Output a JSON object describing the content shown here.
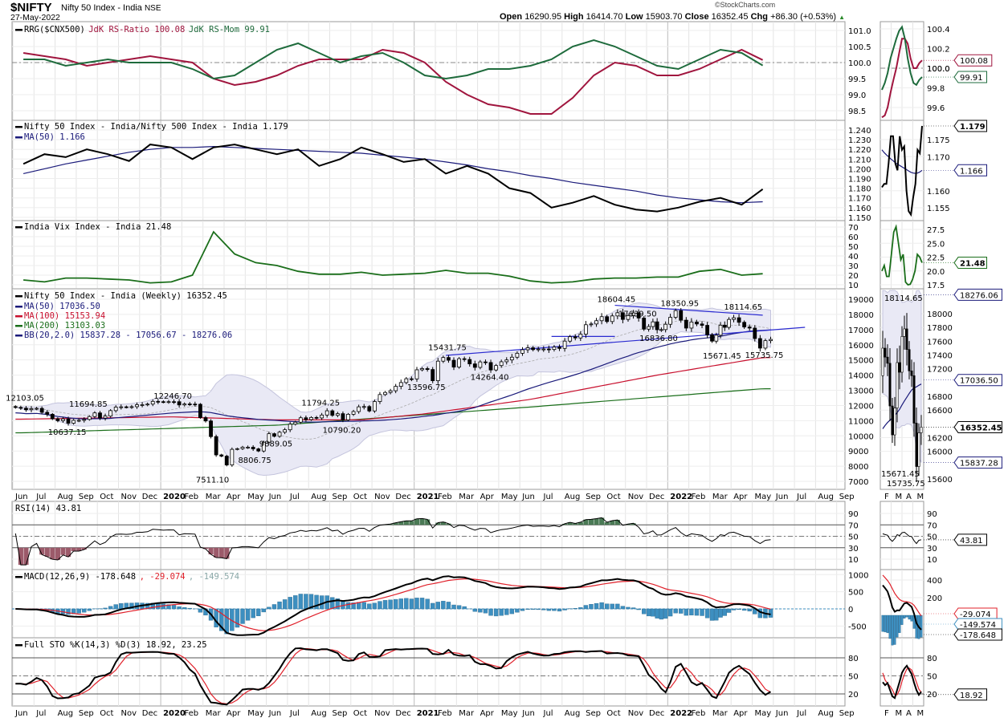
{
  "header": {
    "symbol": "$NIFTY",
    "name": "Nifty 50 Index - India",
    "exchange": "NSE",
    "date": "27-May-2022",
    "watermark": "©StockCharts.com",
    "open_label": "Open",
    "open": "16290.95",
    "high_label": "High",
    "high": "16414.70",
    "low_label": "Low",
    "low": "15903.70",
    "close_label": "Close",
    "close": "16352.45",
    "chg_label": "Chg",
    "chg": "+86.30 (+0.53%)"
  },
  "colors": {
    "rs_ratio": "#a0153e",
    "rs_mom": "#1e6b3c",
    "ratio": "#000000",
    "ma50": "#1a1a7a",
    "ma100": "#c8102e",
    "ma200": "#1a6e1a",
    "vix": "#1a6e1a",
    "bb_fill": "#e9e9f5",
    "macd_signal": "#e0202a",
    "macd_hist": "#3d8fc0",
    "rsi_low_fill": "#9c5a6a",
    "rsi_high_fill": "#4a7a55"
  },
  "chart_data": {
    "type": "candlestick",
    "x_labels": [
      "Jun",
      "Jul",
      "Aug",
      "Sep",
      "Oct",
      "Nov",
      "Dec",
      "2020",
      "Feb",
      "Mar",
      "Apr",
      "May",
      "Jun",
      "Jul",
      "Aug",
      "Sep",
      "Oct",
      "Nov",
      "Dec",
      "2021",
      "Feb",
      "Mar",
      "Apr",
      "May",
      "Jun",
      "Jul",
      "Aug",
      "Sep",
      "Oct",
      "Nov",
      "Dec",
      "2022",
      "Feb",
      "Mar",
      "Apr",
      "May",
      "Jun",
      "Jul",
      "Aug",
      "Sep"
    ],
    "mini_x_labels": [
      "F",
      "M",
      "A",
      "M"
    ],
    "months": [
      "2019-06",
      "2019-07",
      "2019-08",
      "2019-09",
      "2019-10",
      "2019-11",
      "2019-12",
      "2020-01",
      "2020-02",
      "2020-03",
      "2020-04",
      "2020-05",
      "2020-06",
      "2020-07",
      "2020-08",
      "2020-09",
      "2020-10",
      "2020-11",
      "2020-12",
      "2021-01",
      "2021-02",
      "2021-03",
      "2021-04",
      "2021-05",
      "2021-06",
      "2021-07",
      "2021-08",
      "2021-09",
      "2021-10",
      "2021-11",
      "2021-12",
      "2022-01",
      "2022-02",
      "2022-03",
      "2022-04",
      "2022-05"
    ],
    "rrg": {
      "legend": "RRG($CNX500)",
      "ratio_label": "JdK RS-Ratio 100.08",
      "mom_label": "JdK RS-Mom 99.91",
      "ticks": [
        "101.0",
        "100.5",
        "100.0",
        "99.5",
        "99.0",
        "98.5"
      ],
      "rs_mom": [
        100.1,
        100.1,
        99.9,
        100.0,
        100.1,
        100.0,
        100.0,
        100.0,
        99.8,
        99.5,
        99.6,
        100.0,
        100.4,
        100.6,
        100.3,
        100.0,
        100.2,
        100.3,
        100.0,
        99.6,
        99.5,
        99.6,
        99.8,
        99.8,
        99.9,
        100.1,
        100.5,
        100.7,
        100.5,
        100.2,
        99.9,
        99.8,
        100.1,
        100.4,
        100.3,
        99.91
      ],
      "rs_ratio": [
        100.3,
        100.2,
        100.1,
        99.9,
        100.0,
        100.1,
        100.2,
        100.1,
        100.0,
        99.5,
        99.3,
        99.4,
        99.6,
        99.9,
        100.1,
        100.1,
        100.1,
        100.4,
        100.3,
        100.0,
        99.4,
        99.0,
        98.7,
        98.6,
        98.4,
        98.4,
        98.9,
        99.6,
        100.0,
        99.9,
        99.6,
        99.6,
        99.8,
        100.1,
        100.4,
        100.08
      ],
      "mini_ticks": [
        "100.4",
        "100.2",
        "100.0",
        "99.8",
        "99.6"
      ],
      "mini_rs_mom": [
        99.78,
        99.85,
        99.95,
        100.1,
        100.2,
        100.3,
        100.38,
        100.42,
        100.3,
        100.1,
        99.95,
        99.85,
        99.83,
        99.88,
        99.91
      ],
      "mini_rs_ratio": [
        99.5,
        99.52,
        99.6,
        99.75,
        99.88,
        100.0,
        100.15,
        100.3,
        100.3,
        100.25,
        100.1,
        100.0,
        100.0,
        100.05,
        100.08
      ],
      "tag_ratio": "100.08",
      "tag_mom": "99.91"
    },
    "ratio": {
      "legend": "Nifty 50 Index - India/Nifty 500 Index - India 1.179",
      "ma_label": "MA(50) 1.166",
      "ticks": [
        "1.240",
        "1.230",
        "1.220",
        "1.210",
        "1.200",
        "1.190",
        "1.180",
        "1.170",
        "1.160",
        "1.150"
      ],
      "values": [
        1.205,
        1.215,
        1.212,
        1.22,
        1.215,
        1.208,
        1.225,
        1.222,
        1.21,
        1.222,
        1.225,
        1.22,
        1.215,
        1.22,
        1.203,
        1.21,
        1.222,
        1.215,
        1.207,
        1.21,
        1.195,
        1.203,
        1.195,
        1.18,
        1.175,
        1.16,
        1.165,
        1.172,
        1.163,
        1.158,
        1.156,
        1.16,
        1.166,
        1.17,
        1.163,
        1.179
      ],
      "ma50": [
        1.195,
        1.2,
        1.205,
        1.209,
        1.213,
        1.217,
        1.22,
        1.222,
        1.222,
        1.223,
        1.222,
        1.221,
        1.22,
        1.219,
        1.218,
        1.217,
        1.216,
        1.214,
        1.212,
        1.21,
        1.207,
        1.204,
        1.2,
        1.197,
        1.193,
        1.19,
        1.186,
        1.183,
        1.18,
        1.177,
        1.173,
        1.17,
        1.168,
        1.166,
        1.165,
        1.166
      ],
      "mini_ticks": [
        "1.175",
        "1.170",
        "1.160",
        "1.155"
      ],
      "mini_values": [
        1.161,
        1.162,
        1.162,
        1.168,
        1.176,
        1.176,
        1.168,
        1.166,
        1.176,
        1.172,
        1.173,
        1.16,
        1.154,
        1.153,
        1.158,
        1.162,
        1.172,
        1.171,
        1.179
      ],
      "mini_ma": [
        1.172,
        1.1712,
        1.1705,
        1.17,
        1.1693,
        1.1688,
        1.1682,
        1.1678,
        1.1674,
        1.167,
        1.1666,
        1.1662,
        1.1658,
        1.1654,
        1.1652,
        1.1651,
        1.1652,
        1.1655,
        1.166
      ],
      "tag_value": "1.179",
      "tag_ma": "1.166"
    },
    "vix": {
      "legend": "India Vix Index - India 21.48",
      "ticks": [
        "70",
        "60",
        "50",
        "40",
        "30",
        "20",
        "10"
      ],
      "values": [
        15,
        13,
        17,
        17,
        16,
        15,
        12,
        13,
        20,
        65,
        42,
        33,
        30,
        24,
        21,
        21,
        23,
        20,
        21,
        22,
        25,
        22,
        22,
        19,
        14,
        12,
        13,
        16,
        17,
        17,
        18,
        18,
        24,
        26,
        20,
        21.48
      ],
      "mini_ticks": [
        "27.5",
        "25.0",
        "22.5",
        "20.0",
        "17.5"
      ],
      "mini_values": [
        20,
        21,
        19,
        19,
        23,
        27,
        28,
        25,
        22,
        23,
        18,
        17.5,
        17.6,
        18.5,
        20,
        23,
        22.5,
        21.48
      ],
      "tag_value": "21.48"
    },
    "price": {
      "legend": "Nifty 50 Index - India (Weekly) 16352.45",
      "ma50_label": "MA(50) 17036.50",
      "ma100_label": "MA(100) 15153.94",
      "ma200_label": "MA(200) 13103.03",
      "bb_label": "BB(20,2.0) 15837.28 - 17056.67 - 18276.06",
      "ticks": [
        "19000",
        "18000",
        "17000",
        "16000",
        "15000",
        "14000",
        "13000",
        "12000",
        "11000",
        "10000",
        "9000",
        "8000",
        "7000"
      ],
      "weekly_closes": {
        "2019-06": [
          11870,
          11820,
          11720,
          11790
        ],
        "2019-07": [
          11810,
          11550,
          11420,
          11120
        ],
        "2019-08": [
          10998,
          11110,
          10830,
          11020
        ],
        "2019-09": [
          11020,
          11080,
          11270,
          11510
        ],
        "2019-10": [
          11170,
          11300,
          11660,
          11890
        ],
        "2019-11": [
          11910,
          11890,
          11920,
          12050
        ],
        "2019-12": [
          12050,
          12090,
          12270,
          12250
        ],
        "2020-01": [
          12230,
          12250,
          12248,
          12035
        ],
        "2020-02": [
          12100,
          12090,
          12080,
          11200
        ],
        "2020-03": [
          10980,
          9950,
          8745,
          8660
        ],
        "2020-04": [
          8080,
          9110,
          9155,
          9250
        ],
        "2020-05": [
          9250,
          9140,
          9000,
          9580
        ],
        "2020-06": [
          10140,
          9970,
          10240,
          10400
        ],
        "2020-07": [
          10770,
          10900,
          11190,
          11070
        ],
        "2020-08": [
          11210,
          11180,
          11370,
          11650
        ],
        "2020-09": [
          11350,
          11460,
          11050,
          11420
        ],
        "2020-10": [
          11600,
          11910,
          11930,
          11640
        ],
        "2020-11": [
          12260,
          12720,
          12860,
          12970
        ],
        "2020-12": [
          13260,
          13510,
          13760,
          13750
        ],
        "2021-01": [
          14350,
          14430,
          14370,
          13630
        ],
        "2021-02": [
          14920,
          15160,
          14980,
          14530
        ],
        "2021-03": [
          15080,
          15030,
          14740,
          14510
        ],
        "2021-04": [
          14870,
          14830,
          14340,
          14630
        ],
        "2021-05": [
          14880,
          15000,
          15180,
          15440
        ],
        "2021-06": [
          15670,
          15800,
          15680,
          15720
        ],
        "2021-07": [
          15720,
          15690,
          15850,
          15760
        ],
        "2021-08": [
          16240,
          16530,
          16450,
          16700
        ],
        "2021-09": [
          17320,
          17370,
          17585,
          17850
        ],
        "2021-10": [
          17530,
          17900,
          18110,
          17670
        ],
        "2021-11": [
          17920,
          18100,
          17760,
          17030
        ],
        "2021-12": [
          17200,
          17510,
          16990,
          17000,
          17350
        ],
        "2022-01": [
          17810,
          18250,
          17620,
          17100
        ],
        "2022-02": [
          17500,
          17370,
          17280,
          16660
        ],
        "2022-03": [
          16240,
          16630,
          17290,
          17150,
          17670
        ],
        "2022-04": [
          17780,
          17480,
          17170,
          17100
        ],
        "2022-05": [
          16410,
          15780,
          16270,
          16352.45
        ]
      },
      "ma100": [
        [
          "2019-06",
          11100
        ],
        [
          "2020-01",
          11250
        ],
        [
          "2020-06",
          11050
        ],
        [
          "2020-10",
          11050
        ],
        [
          "2021-01",
          11450
        ],
        [
          "2021-06",
          12400
        ],
        [
          "2021-12",
          14000
        ],
        [
          "2022-05",
          15153.94
        ]
      ],
      "ma200": [
        [
          "2019-06",
          10200
        ],
        [
          "2020-06",
          10700
        ],
        [
          "2021-06",
          11900
        ],
        [
          "2022-05",
          13103.03
        ]
      ],
      "annotations": [
        {
          "month": "2019-06",
          "value": 12103.05,
          "label": "12103.05",
          "pos": "above"
        },
        {
          "month": "2019-08",
          "value": 10637.15,
          "label": "10637.15",
          "pos": "below"
        },
        {
          "month": "2019-09",
          "value": 11694.85,
          "label": "11694.85",
          "pos": "above"
        },
        {
          "month": "2020-01",
          "value": 12246.7,
          "label": "12246.70",
          "pos": "above"
        },
        {
          "month": "2020-03",
          "value": 7511.1,
          "label": "7511.10",
          "pos": "below"
        },
        {
          "month": "2020-05",
          "value": 8806.75,
          "label": "8806.75",
          "pos": "below"
        },
        {
          "month": "2020-06",
          "value": 9889.05,
          "label": "9889.05",
          "pos": "below"
        },
        {
          "month": "2020-08",
          "value": 11794.25,
          "label": "11794.25",
          "pos": "above"
        },
        {
          "month": "2020-09",
          "value": 10790.2,
          "label": "10790.20",
          "pos": "below"
        },
        {
          "month": "2021-01",
          "value": 13596.75,
          "label": "13596.75",
          "pos": "below"
        },
        {
          "month": "2021-02",
          "value": 15431.75,
          "label": "15431.75",
          "pos": "above"
        },
        {
          "month": "2021-04",
          "value": 14264.4,
          "label": "14264.40",
          "pos": "below"
        },
        {
          "month": "2021-10",
          "value": 18604.45,
          "label": "18604.45",
          "pos": "above"
        },
        {
          "month": "2021-11",
          "value": 17639.5,
          "label": "17639.50",
          "pos": "above"
        },
        {
          "month": "2021-12",
          "value": 16836.8,
          "label": "16836.80",
          "pos": "below"
        },
        {
          "month": "2022-01",
          "value": 18350.95,
          "label": "18350.95",
          "pos": "above"
        },
        {
          "month": "2022-03",
          "value": 15671.45,
          "label": "15671.45",
          "pos": "below"
        },
        {
          "month": "2022-04",
          "value": 18114.65,
          "label": "18114.65",
          "pos": "above"
        },
        {
          "month": "2022-05",
          "value": 15735.75,
          "label": "15735.75",
          "pos": "below"
        }
      ],
      "trendlines": [
        {
          "from": [
            "2021-02",
            15300
          ],
          "to": [
            "2022-07",
            17150
          ]
        },
        {
          "from": [
            "2021-10",
            18600
          ],
          "to": [
            "2022-05",
            17950
          ]
        },
        {
          "from": [
            "2021-07",
            16550
          ],
          "to": [
            "2021-10",
            16550
          ]
        }
      ],
      "mini_ticks": [
        "18000",
        "17800",
        "17600",
        "17400",
        "17200",
        "16800",
        "16600",
        "16200",
        "16000",
        "15600"
      ],
      "mini_annotations": [
        "18114.65",
        "15671.45",
        "15735.75"
      ],
      "tag_bb_upper": "18276.06",
      "tag_ma50": "17036.50",
      "tag_close": "16352.45",
      "tag_bb_lower": "15837.28"
    },
    "rsi": {
      "legend": "RSI(14) 43.81",
      "ticks": [
        "90",
        "70",
        "50",
        "30",
        "10"
      ],
      "tag": "43.81"
    },
    "macd": {
      "legend": "MACD(12,26,9) -178.648",
      "signal_label": ", -29.074",
      "hist_label": ", -149.574",
      "ticks": [
        "1000",
        "500",
        "0",
        "-500"
      ],
      "mini_ticks": [
        "400",
        "200"
      ],
      "tag_signal": "-29.074",
      "tag_hist": "-149.574",
      "tag_macd": "-178.648"
    },
    "sto": {
      "legend": "Full STO %K(14,3) %D(3) 18.92, 23.25",
      "ticks": [
        "80",
        "50",
        "20"
      ],
      "tag": "18.92"
    }
  }
}
